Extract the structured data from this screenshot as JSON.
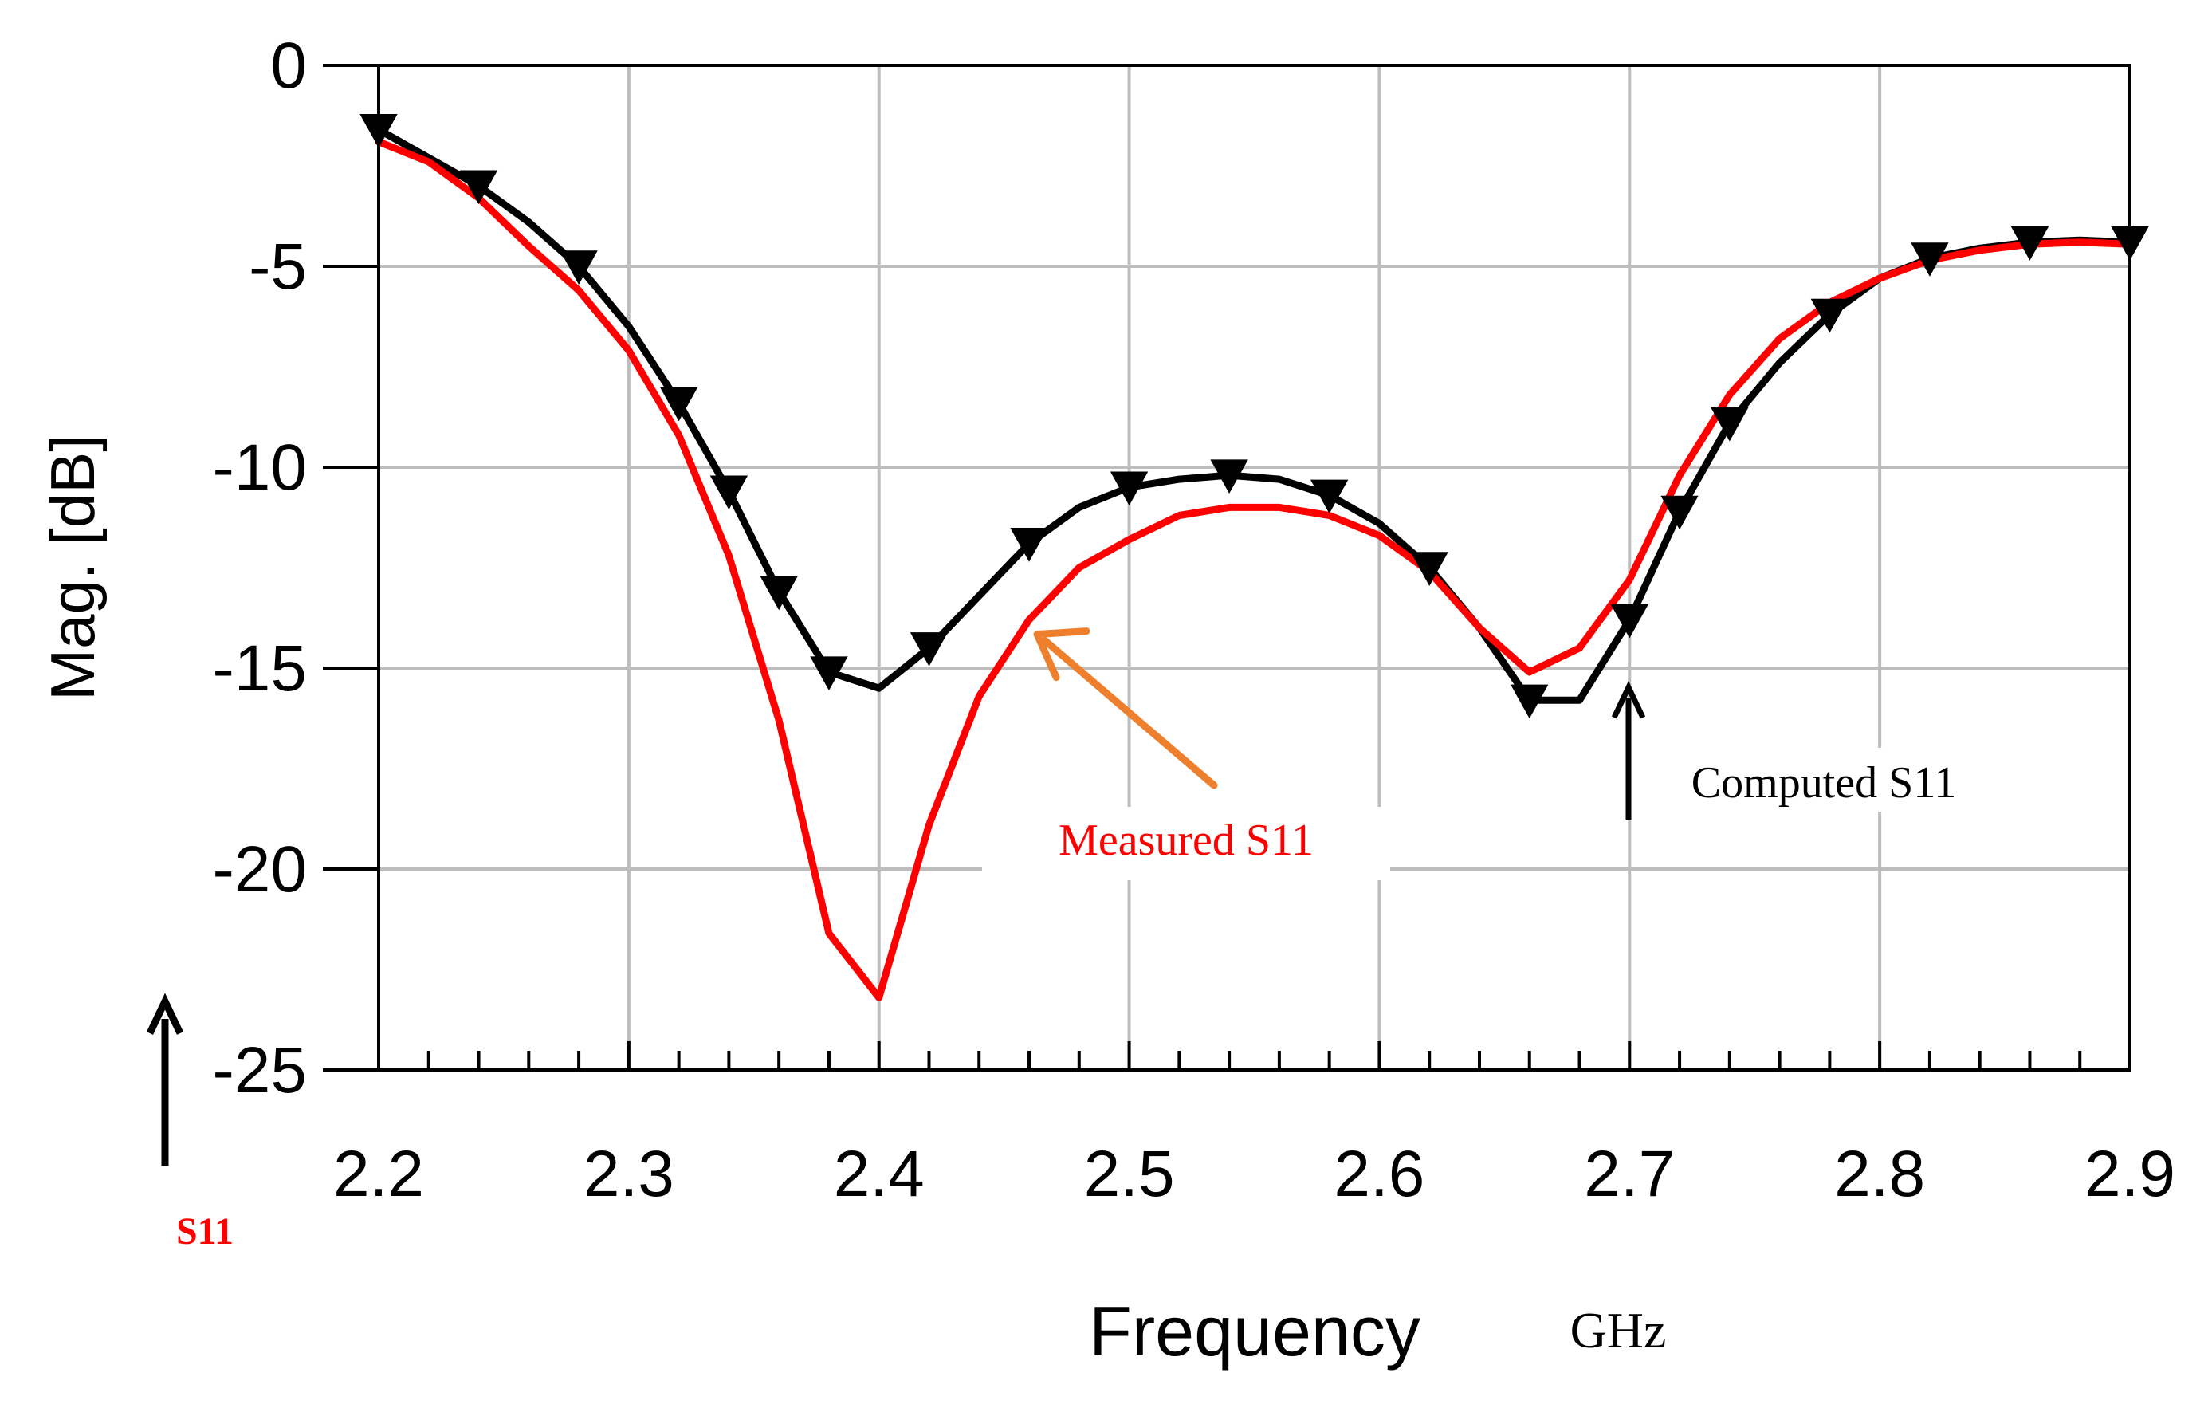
{
  "chart_data": {
    "type": "line",
    "title": "",
    "xlabel": "Frequency",
    "xunit": "GHz",
    "ylabel": "Mag. [dB]",
    "y_indicator_label": "S11",
    "xlim": [
      2.2,
      2.9
    ],
    "ylim": [
      -25,
      0
    ],
    "x_ticks": [
      "2.2",
      "2.3",
      "2.4",
      "2.5",
      "2.6",
      "2.7",
      "2.8",
      "2.9"
    ],
    "y_ticks": [
      "0",
      "-5",
      "-10",
      "-15",
      "-20",
      "-25"
    ],
    "grid": true,
    "series": [
      {
        "name": "Computed S11",
        "color": "#000000",
        "marker": "triangle-down",
        "x": [
          2.2,
          2.22,
          2.24,
          2.26,
          2.28,
          2.3,
          2.32,
          2.34,
          2.36,
          2.38,
          2.4,
          2.42,
          2.44,
          2.46,
          2.48,
          2.5,
          2.52,
          2.54,
          2.56,
          2.58,
          2.6,
          2.62,
          2.64,
          2.66,
          2.68,
          2.7,
          2.72,
          2.74,
          2.76,
          2.78,
          2.8,
          2.82,
          2.84,
          2.86,
          2.88,
          2.9
        ],
        "y": [
          -1.6,
          -2.3,
          -3.0,
          -3.9,
          -5.0,
          -6.5,
          -8.4,
          -10.6,
          -13.1,
          -15.1,
          -15.5,
          -14.5,
          -13.2,
          -11.9,
          -11.0,
          -10.5,
          -10.3,
          -10.2,
          -10.3,
          -10.7,
          -11.4,
          -12.5,
          -14.0,
          -15.8,
          -15.8,
          -13.8,
          -11.1,
          -8.9,
          -7.4,
          -6.2,
          -5.3,
          -4.8,
          -4.55,
          -4.4,
          -4.35,
          -4.4
        ],
        "marker_x": [
          2.2,
          2.24,
          2.28,
          2.32,
          2.34,
          2.36,
          2.38,
          2.42,
          2.46,
          2.5,
          2.54,
          2.58,
          2.62,
          2.66,
          2.7,
          2.72,
          2.74,
          2.78,
          2.82,
          2.86,
          2.9
        ],
        "marker_y": [
          -1.6,
          -3.0,
          -5.0,
          -8.4,
          -10.6,
          -13.1,
          -15.1,
          -14.5,
          -11.9,
          -10.5,
          -10.2,
          -10.7,
          -12.5,
          -15.8,
          -13.8,
          -11.1,
          -8.9,
          -6.2,
          -4.8,
          -4.4,
          -4.4
        ]
      },
      {
        "name": "Measured S11",
        "color": "#ff0000",
        "marker": "none",
        "x": [
          2.2,
          2.22,
          2.24,
          2.26,
          2.28,
          2.3,
          2.32,
          2.34,
          2.36,
          2.38,
          2.4,
          2.42,
          2.44,
          2.46,
          2.48,
          2.5,
          2.52,
          2.54,
          2.56,
          2.58,
          2.6,
          2.62,
          2.64,
          2.66,
          2.68,
          2.7,
          2.72,
          2.74,
          2.76,
          2.78,
          2.8,
          2.82,
          2.84,
          2.86,
          2.88,
          2.9
        ],
        "y": [
          -1.9,
          -2.4,
          -3.3,
          -4.5,
          -5.6,
          -7.1,
          -9.2,
          -12.2,
          -16.3,
          -21.6,
          -23.2,
          -18.9,
          -15.7,
          -13.8,
          -12.5,
          -11.8,
          -11.2,
          -11.0,
          -11.0,
          -11.2,
          -11.7,
          -12.6,
          -14.0,
          -15.1,
          -14.5,
          -12.8,
          -10.2,
          -8.2,
          -6.8,
          -5.9,
          -5.3,
          -4.85,
          -4.6,
          -4.45,
          -4.4,
          -4.45
        ]
      }
    ],
    "annotations": [
      {
        "text": "Measured S11",
        "color": "#ff0000",
        "arrow_color": "#ee7f2d",
        "points_to": [
          2.46,
          -14.0
        ]
      },
      {
        "text": "Computed S11",
        "color": "#000000",
        "arrow_color": "#000000",
        "points_to": [
          2.695,
          -15.6
        ]
      }
    ]
  }
}
